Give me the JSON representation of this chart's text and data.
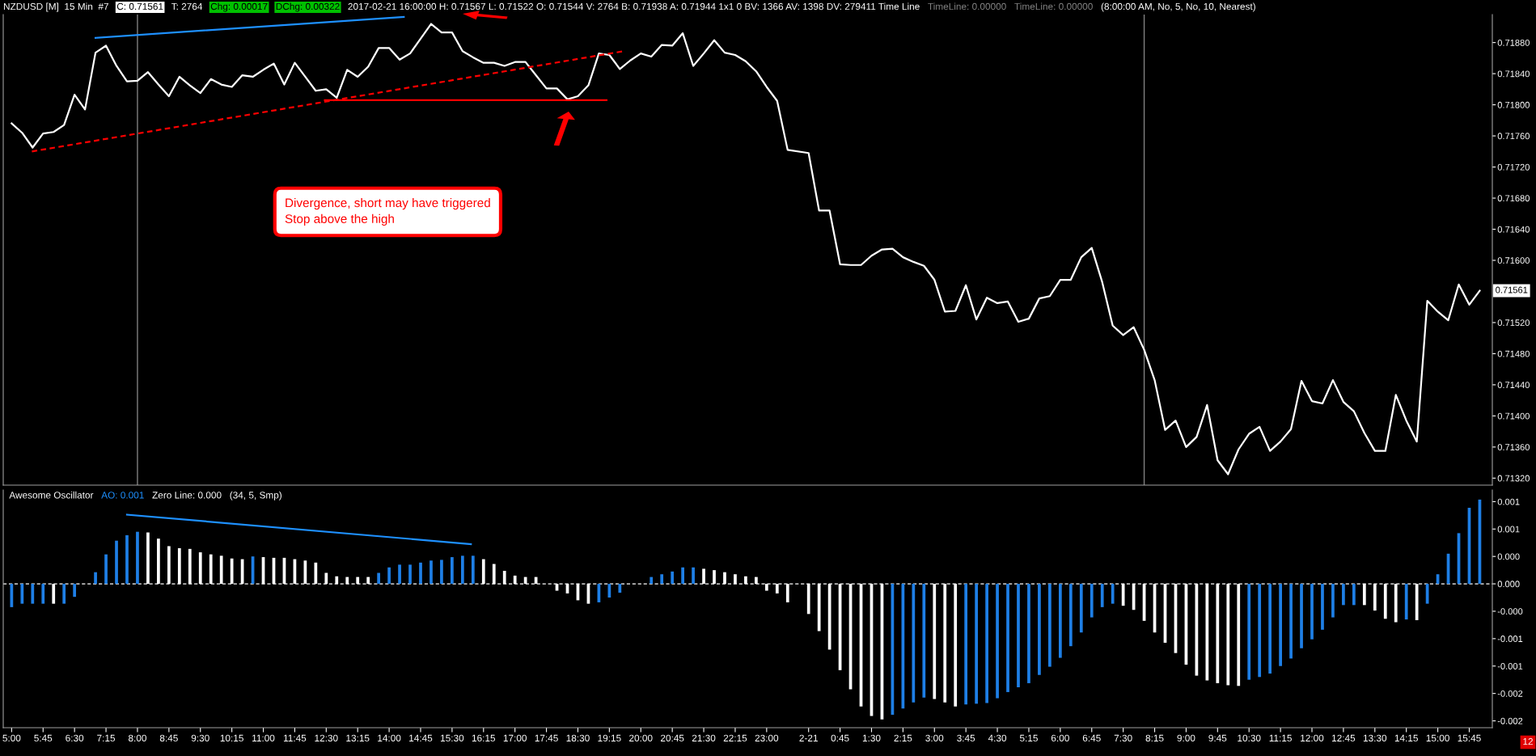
{
  "chart_data": [
    {
      "type": "line",
      "annotations": [
        "NZDUSD [M]  15 Min  #7",
        "C: 0.71561",
        "T: 2764",
        "Chg: 0.00017",
        "DChg: 0.00322",
        "2017-02-21 16:00:00 H: 0.71567 L: 0.71522 O: 0.71544 V: 2764 B: 0.71938 A: 0.71944 1x1 0 BV: 1366 AV: 1398 DV: 279411 Time Line",
        "TimeLine: 0.00000",
        "TimeLine: 0.00000",
        "(8:00:00 AM, No, 5, No, 10, Nearest)",
        "Divergence, short may have triggered\nStop above the high",
        {
          "text": "0.71561",
          "x": "2017-02-21T16:00",
          "y": 0.71561
        }
      ],
      "x": [
        "2017-02-20T05:00",
        "2017-02-20T05:15",
        "2017-02-20T05:30",
        "2017-02-20T05:45",
        "2017-02-20T06:00",
        "2017-02-20T06:15",
        "2017-02-20T06:30",
        "2017-02-20T06:45",
        "2017-02-20T07:00",
        "2017-02-20T07:15",
        "2017-02-20T07:30",
        "2017-02-20T07:45",
        "2017-02-20T08:00",
        "2017-02-20T08:15",
        "2017-02-20T08:30",
        "2017-02-20T08:45",
        "2017-02-20T09:00",
        "2017-02-20T09:15",
        "2017-02-20T09:30",
        "2017-02-20T09:45",
        "2017-02-20T10:00",
        "2017-02-20T10:15",
        "2017-02-20T10:30",
        "2017-02-20T10:45",
        "2017-02-20T11:00",
        "2017-02-20T11:15",
        "2017-02-20T11:30",
        "2017-02-20T11:45",
        "2017-02-20T12:00",
        "2017-02-20T12:15",
        "2017-02-20T12:30",
        "2017-02-20T12:45",
        "2017-02-20T13:00",
        "2017-02-20T13:15",
        "2017-02-20T13:30",
        "2017-02-20T13:45",
        "2017-02-20T14:00",
        "2017-02-20T14:15",
        "2017-02-20T14:30",
        "2017-02-20T14:45",
        "2017-02-20T15:00",
        "2017-02-20T15:15",
        "2017-02-20T15:30",
        "2017-02-20T15:45",
        "2017-02-20T16:00",
        "2017-02-20T16:15",
        "2017-02-20T16:30",
        "2017-02-20T16:45",
        "2017-02-20T17:00",
        "2017-02-20T17:15",
        "2017-02-20T17:30",
        "2017-02-20T17:45",
        "2017-02-20T18:00",
        "2017-02-20T18:15",
        "2017-02-20T18:30",
        "2017-02-20T18:45",
        "2017-02-20T19:00",
        "2017-02-20T19:15",
        "2017-02-20T19:30",
        "2017-02-20T19:45",
        "2017-02-20T20:00",
        "2017-02-20T20:15",
        "2017-02-20T20:30",
        "2017-02-20T20:45",
        "2017-02-20T21:00",
        "2017-02-20T21:15",
        "2017-02-20T21:30",
        "2017-02-20T21:45",
        "2017-02-20T22:00",
        "2017-02-20T22:15",
        "2017-02-20T22:30",
        "2017-02-20T22:45",
        "2017-02-20T23:00",
        "2017-02-20T23:15",
        "2017-02-20T23:30",
        "2017-02-21T00:00",
        "2017-02-21T00:15",
        "2017-02-21T00:30",
        "2017-02-21T00:45",
        "2017-02-21T01:00",
        "2017-02-21T01:15",
        "2017-02-21T01:30",
        "2017-02-21T01:45",
        "2017-02-21T02:00",
        "2017-02-21T02:15",
        "2017-02-21T02:30",
        "2017-02-21T02:45",
        "2017-02-21T03:00",
        "2017-02-21T03:15",
        "2017-02-21T03:30",
        "2017-02-21T03:45",
        "2017-02-21T04:00",
        "2017-02-21T04:15",
        "2017-02-21T04:30",
        "2017-02-21T04:45",
        "2017-02-21T05:00",
        "2017-02-21T05:15",
        "2017-02-21T05:30",
        "2017-02-21T05:45",
        "2017-02-21T06:00",
        "2017-02-21T06:15",
        "2017-02-21T06:30",
        "2017-02-21T06:45",
        "2017-02-21T07:00",
        "2017-02-21T07:15",
        "2017-02-21T07:30",
        "2017-02-21T07:45",
        "2017-02-21T08:00",
        "2017-02-21T08:15",
        "2017-02-21T08:30",
        "2017-02-21T08:45",
        "2017-02-21T09:00",
        "2017-02-21T09:15",
        "2017-02-21T09:30",
        "2017-02-21T09:45",
        "2017-02-21T10:00",
        "2017-02-21T10:15",
        "2017-02-21T10:30",
        "2017-02-21T10:45",
        "2017-02-21T11:00",
        "2017-02-21T11:15",
        "2017-02-21T11:30",
        "2017-02-21T11:45",
        "2017-02-21T12:00",
        "2017-02-21T12:15",
        "2017-02-21T12:30",
        "2017-02-21T12:45",
        "2017-02-21T13:00",
        "2017-02-21T13:15",
        "2017-02-21T13:30",
        "2017-02-21T13:45",
        "2017-02-21T14:00",
        "2017-02-21T14:15",
        "2017-02-21T14:30",
        "2017-02-21T14:45",
        "2017-02-21T15:00",
        "2017-02-21T15:15",
        "2017-02-21T15:30",
        "2017-02-21T15:45",
        "2017-02-21T16:00"
      ],
      "series": [
        {
          "color": "#ffffff",
          "values": [
            0.71776,
            0.71764,
            0.71745,
            0.71763,
            0.71765,
            0.71774,
            0.71813,
            0.71794,
            0.71867,
            0.71876,
            0.7185,
            0.7183,
            0.71831,
            0.71842,
            0.71826,
            0.71811,
            0.71836,
            0.71825,
            0.71815,
            0.71833,
            0.71826,
            0.71823,
            0.71838,
            0.71836,
            0.71845,
            0.71853,
            0.71826,
            0.71854,
            0.71836,
            0.71818,
            0.7182,
            0.71809,
            0.71845,
            0.71836,
            0.71849,
            0.71873,
            0.71873,
            0.71858,
            0.71866,
            0.71885,
            0.71904,
            0.71893,
            0.71893,
            0.71869,
            0.71861,
            0.71854,
            0.71854,
            0.7185,
            0.71855,
            0.71855,
            0.71838,
            0.71821,
            0.71821,
            0.71807,
            0.71811,
            0.71825,
            0.71866,
            0.71864,
            0.71846,
            0.71857,
            0.71866,
            0.71862,
            0.71877,
            0.71876,
            0.71892,
            0.7185,
            0.71866,
            0.71883,
            0.71867,
            0.71864,
            0.71856,
            0.71843,
            0.71823,
            0.71805,
            0.71742,
            0.71738,
            0.71664,
            0.71664,
            0.71595,
            0.71594,
            0.71594,
            0.71606,
            0.71614,
            0.71615,
            0.71604,
            0.71598,
            0.71593,
            0.71575,
            0.71534,
            0.71535,
            0.71568,
            0.71524,
            0.71552,
            0.71545,
            0.71547,
            0.71521,
            0.71525,
            0.71551,
            0.71554,
            0.71575,
            0.71575,
            0.71604,
            0.71616,
            0.71572,
            0.71516,
            0.71504,
            0.71514,
            0.71485,
            0.71446,
            0.71382,
            0.71394,
            0.7136,
            0.71373,
            0.71414,
            0.71343,
            0.71325,
            0.71357,
            0.71377,
            0.71386,
            0.71355,
            0.71367,
            0.71383,
            0.71445,
            0.71419,
            0.71416,
            0.71446,
            0.71418,
            0.71406,
            0.71378,
            0.71355,
            0.71355,
            0.71427,
            0.71394,
            0.71367,
            0.71548,
            0.71534,
            0.71523,
            0.71569,
            0.71543,
            0.71561
          ]
        },
        {
          "color": "#1e90ff",
          "x": [
            "2017-02-20T07:00",
            "2017-02-20T14:21"
          ],
          "values": [
            0.71886,
            0.71913
          ]
        },
        {
          "color": "#ff0000",
          "line_style": "dashed",
          "x": [
            "2017-02-20T05:29",
            "2017-02-20T19:36"
          ],
          "values": [
            0.7174,
            0.71869
          ]
        },
        {
          "color": "#ff0000",
          "x": [
            "2017-02-20T12:28",
            "2017-02-20T19:11"
          ],
          "values": [
            0.71806,
            0.71806
          ]
        }
      ],
      "ref_lines": [
        {
          "axis": "x",
          "value": "2017-02-20T08:00",
          "color": "#808080"
        },
        {
          "axis": "x",
          "value": "2017-02-21T08:00",
          "color": "#808080"
        }
      ],
      "xlim": [
        "2017-02-20T04:48",
        "2017-02-21T16:18"
      ],
      "ylim": [
        0.71311,
        0.71916
      ],
      "yticks": [
        {
          "value": 0.7132,
          "label": "0.71320"
        },
        {
          "value": 0.7136,
          "label": "0.71360"
        },
        {
          "value": 0.714,
          "label": "0.71400"
        },
        {
          "value": 0.7144,
          "label": "0.71440"
        },
        {
          "value": 0.7148,
          "label": "0.71480"
        },
        {
          "value": 0.7152,
          "label": "0.71520"
        },
        {
          "value": 0.716,
          "label": "0.71600"
        },
        {
          "value": 0.7164,
          "label": "0.71640"
        },
        {
          "value": 0.7168,
          "label": "0.71680"
        },
        {
          "value": 0.7172,
          "label": "0.71720"
        },
        {
          "value": 0.7176,
          "label": "0.71760"
        },
        {
          "value": 0.718,
          "label": "0.71800"
        },
        {
          "value": 0.7184,
          "label": "0.71840"
        },
        {
          "value": 0.7188,
          "label": "0.71880"
        }
      ],
      "tick_labels": "y",
      "grid": false,
      "legend": false
    },
    {
      "type": "bar",
      "annotations": [
        "Awesome Oscillator",
        "AO: 0.001",
        "Zero Line: 0.000",
        "(34, 5, Smp)",
        "12"
      ],
      "x": [
        "2017-02-20T05:00",
        "2017-02-20T05:15",
        "2017-02-20T05:30",
        "2017-02-20T05:45",
        "2017-02-20T06:00",
        "2017-02-20T06:15",
        "2017-02-20T06:30",
        "2017-02-20T06:45",
        "2017-02-20T07:00",
        "2017-02-20T07:15",
        "2017-02-20T07:30",
        "2017-02-20T07:45",
        "2017-02-20T08:00",
        "2017-02-20T08:15",
        "2017-02-20T08:30",
        "2017-02-20T08:45",
        "2017-02-20T09:00",
        "2017-02-20T09:15",
        "2017-02-20T09:30",
        "2017-02-20T09:45",
        "2017-02-20T10:00",
        "2017-02-20T10:15",
        "2017-02-20T10:30",
        "2017-02-20T10:45",
        "2017-02-20T11:00",
        "2017-02-20T11:15",
        "2017-02-20T11:30",
        "2017-02-20T11:45",
        "2017-02-20T12:00",
        "2017-02-20T12:15",
        "2017-02-20T12:30",
        "2017-02-20T12:45",
        "2017-02-20T13:00",
        "2017-02-20T13:15",
        "2017-02-20T13:30",
        "2017-02-20T13:45",
        "2017-02-20T14:00",
        "2017-02-20T14:15",
        "2017-02-20T14:30",
        "2017-02-20T14:45",
        "2017-02-20T15:00",
        "2017-02-20T15:15",
        "2017-02-20T15:30",
        "2017-02-20T15:45",
        "2017-02-20T16:00",
        "2017-02-20T16:15",
        "2017-02-20T16:30",
        "2017-02-20T16:45",
        "2017-02-20T17:00",
        "2017-02-20T17:15",
        "2017-02-20T17:30",
        "2017-02-20T17:45",
        "2017-02-20T18:00",
        "2017-02-20T18:15",
        "2017-02-20T18:30",
        "2017-02-20T18:45",
        "2017-02-20T19:00",
        "2017-02-20T19:15",
        "2017-02-20T19:30",
        "2017-02-20T19:45",
        "2017-02-20T20:00",
        "2017-02-20T20:15",
        "2017-02-20T20:30",
        "2017-02-20T20:45",
        "2017-02-20T21:00",
        "2017-02-20T21:15",
        "2017-02-20T21:30",
        "2017-02-20T21:45",
        "2017-02-20T22:00",
        "2017-02-20T22:15",
        "2017-02-20T22:30",
        "2017-02-20T22:45",
        "2017-02-20T23:00",
        "2017-02-20T23:15",
        "2017-02-20T23:30",
        "2017-02-21T00:00",
        "2017-02-21T00:15",
        "2017-02-21T00:30",
        "2017-02-21T00:45",
        "2017-02-21T01:00",
        "2017-02-21T01:15",
        "2017-02-21T01:30",
        "2017-02-21T01:45",
        "2017-02-21T02:00",
        "2017-02-21T02:15",
        "2017-02-21T02:30",
        "2017-02-21T02:45",
        "2017-02-21T03:00",
        "2017-02-21T03:15",
        "2017-02-21T03:30",
        "2017-02-21T03:45",
        "2017-02-21T04:00",
        "2017-02-21T04:15",
        "2017-02-21T04:30",
        "2017-02-21T04:45",
        "2017-02-21T05:00",
        "2017-02-21T05:15",
        "2017-02-21T05:30",
        "2017-02-21T05:45",
        "2017-02-21T06:00",
        "2017-02-21T06:15",
        "2017-02-21T06:30",
        "2017-02-21T06:45",
        "2017-02-21T07:00",
        "2017-02-21T07:15",
        "2017-02-21T07:30",
        "2017-02-21T07:45",
        "2017-02-21T08:00",
        "2017-02-21T08:15",
        "2017-02-21T08:30",
        "2017-02-21T08:45",
        "2017-02-21T09:00",
        "2017-02-21T09:15",
        "2017-02-21T09:30",
        "2017-02-21T09:45",
        "2017-02-21T10:00",
        "2017-02-21T10:15",
        "2017-02-21T10:30",
        "2017-02-21T10:45",
        "2017-02-21T11:00",
        "2017-02-21T11:15",
        "2017-02-21T11:30",
        "2017-02-21T11:45",
        "2017-02-21T12:00",
        "2017-02-21T12:15",
        "2017-02-21T12:30",
        "2017-02-21T12:45",
        "2017-02-21T13:00",
        "2017-02-21T13:15",
        "2017-02-21T13:30",
        "2017-02-21T13:45",
        "2017-02-21T14:00",
        "2017-02-21T14:15",
        "2017-02-21T14:30",
        "2017-02-21T14:45",
        "2017-02-21T15:00",
        "2017-02-21T15:15",
        "2017-02-21T15:30",
        "2017-02-21T15:45",
        "2017-02-21T16:00"
      ],
      "series": [
        {
          "values": [
            -0.00034,
            -0.00029,
            -0.00029,
            -0.00029,
            -0.00029,
            -0.00029,
            -0.00019,
            -0.0,
            0.00017,
            0.00043,
            0.00063,
            0.00071,
            0.00076,
            0.00075,
            0.00066,
            0.00055,
            0.00052,
            0.00051,
            0.00046,
            0.00043,
            0.00041,
            0.00037,
            0.00036,
            0.0004,
            0.00039,
            0.00038,
            0.00038,
            0.00036,
            0.00034,
            0.00031,
            0.00016,
            0.00011,
            0.0001,
            0.0001,
            0.0001,
            0.00016,
            0.00024,
            0.00028,
            0.00028,
            0.00031,
            0.00034,
            0.00035,
            0.00039,
            0.00041,
            0.00041,
            0.00036,
            0.00029,
            0.00019,
            0.00012,
            0.0001,
            0.0001,
            -0.0,
            -0.0001,
            -0.00014,
            -0.00024,
            -0.00029,
            -0.00027,
            -0.0002,
            -0.00013,
            -0.0,
            0.0,
            0.0001,
            0.00014,
            0.00018,
            0.00024,
            0.00024,
            0.00022,
            0.0002,
            0.00017,
            0.00014,
            0.00011,
            0.0001,
            -0.0001,
            -0.00014,
            -0.00027,
            -0.00044,
            -0.00069,
            -0.00096,
            -0.00126,
            -0.00154,
            -0.00179,
            -0.00193,
            -0.00198,
            -0.00191,
            -0.00182,
            -0.00173,
            -0.00166,
            -0.00168,
            -0.00173,
            -0.00179,
            -0.00176,
            -0.00175,
            -0.00174,
            -0.00167,
            -0.00158,
            -0.00151,
            -0.00145,
            -0.00133,
            -0.00121,
            -0.00108,
            -0.00091,
            -0.00071,
            -0.00049,
            -0.00034,
            -0.00029,
            -0.00032,
            -0.00038,
            -0.00054,
            -0.00071,
            -0.00086,
            -0.00101,
            -0.00118,
            -0.00134,
            -0.00141,
            -0.00145,
            -0.00148,
            -0.00149,
            -0.0014,
            -0.00136,
            -0.00131,
            -0.0012,
            -0.00109,
            -0.00094,
            -0.00081,
            -0.00067,
            -0.00049,
            -0.00031,
            -0.00031,
            -0.00031,
            -0.00039,
            -0.00051,
            -0.00056,
            -0.00052,
            -0.00053,
            -0.00029,
            0.00014,
            0.00044,
            0.00074,
            0.00111,
            0.00123
          ],
          "colors": [
            "#1e7fe6",
            "#1e7fe6",
            "#1e7fe6",
            "#1e7fe6",
            "#ffffff",
            "#1e7fe6",
            "#1e7fe6",
            "#1e7fe6",
            "#1e7fe6",
            "#1e7fe6",
            "#1e7fe6",
            "#1e7fe6",
            "#1e7fe6",
            "#ffffff",
            "#ffffff",
            "#ffffff",
            "#ffffff",
            "#ffffff",
            "#ffffff",
            "#ffffff",
            "#ffffff",
            "#ffffff",
            "#ffffff",
            "#1e7fe6",
            "#ffffff",
            "#ffffff",
            "#ffffff",
            "#ffffff",
            "#ffffff",
            "#ffffff",
            "#ffffff",
            "#ffffff",
            "#ffffff",
            "#ffffff",
            "#ffffff",
            "#1e7fe6",
            "#1e7fe6",
            "#1e7fe6",
            "#1e7fe6",
            "#1e7fe6",
            "#1e7fe6",
            "#1e7fe6",
            "#1e7fe6",
            "#1e7fe6",
            "#1e7fe6",
            "#ffffff",
            "#ffffff",
            "#ffffff",
            "#ffffff",
            "#ffffff",
            "#ffffff",
            "#ffffff",
            "#ffffff",
            "#ffffff",
            "#ffffff",
            "#ffffff",
            "#1e7fe6",
            "#1e7fe6",
            "#1e7fe6",
            "#1e7fe6",
            "#1e7fe6",
            "#1e7fe6",
            "#1e7fe6",
            "#1e7fe6",
            "#1e7fe6",
            "#1e7fe6",
            "#ffffff",
            "#ffffff",
            "#ffffff",
            "#ffffff",
            "#ffffff",
            "#ffffff",
            "#ffffff",
            "#ffffff",
            "#ffffff",
            "#ffffff",
            "#ffffff",
            "#ffffff",
            "#ffffff",
            "#ffffff",
            "#ffffff",
            "#ffffff",
            "#ffffff",
            "#1e7fe6",
            "#1e7fe6",
            "#1e7fe6",
            "#1e7fe6",
            "#ffffff",
            "#ffffff",
            "#ffffff",
            "#1e7fe6",
            "#1e7fe6",
            "#1e7fe6",
            "#1e7fe6",
            "#1e7fe6",
            "#1e7fe6",
            "#1e7fe6",
            "#1e7fe6",
            "#1e7fe6",
            "#1e7fe6",
            "#1e7fe6",
            "#1e7fe6",
            "#1e7fe6",
            "#1e7fe6",
            "#1e7fe6",
            "#ffffff",
            "#ffffff",
            "#ffffff",
            "#ffffff",
            "#ffffff",
            "#ffffff",
            "#ffffff",
            "#ffffff",
            "#ffffff",
            "#ffffff",
            "#ffffff",
            "#ffffff",
            "#1e7fe6",
            "#1e7fe6",
            "#1e7fe6",
            "#1e7fe6",
            "#1e7fe6",
            "#1e7fe6",
            "#1e7fe6",
            "#1e7fe6",
            "#1e7fe6",
            "#1e7fe6",
            "#1e7fe6",
            "#ffffff",
            "#ffffff",
            "#ffffff",
            "#ffffff",
            "#1e7fe6",
            "#ffffff",
            "#1e7fe6",
            "#1e7fe6",
            "#1e7fe6",
            "#1e7fe6",
            "#1e7fe6",
            "#1e7fe6"
          ]
        },
        {
          "type": "line",
          "color": "#1e90ff",
          "x": [
            "2017-02-20T07:45",
            "2017-02-20T15:57"
          ],
          "values": [
            0.00101,
            0.00058
          ]
        }
      ],
      "ref_lines": [
        {
          "axis": "y",
          "value": 0,
          "color": "#ffffff",
          "line_style": "dashed"
        }
      ],
      "xlim": [
        "2017-02-20T04:48",
        "2017-02-21T16:18"
      ],
      "xticks": [
        {
          "value": "2017-02-20T05:00",
          "label": "5:00"
        },
        {
          "value": "2017-02-20T05:45",
          "label": "5:45"
        },
        {
          "value": "2017-02-20T06:30",
          "label": "6:30"
        },
        {
          "value": "2017-02-20T07:15",
          "label": "7:15"
        },
        {
          "value": "2017-02-20T08:00",
          "label": "8:00"
        },
        {
          "value": "2017-02-20T08:45",
          "label": "8:45"
        },
        {
          "value": "2017-02-20T09:30",
          "label": "9:30"
        },
        {
          "value": "2017-02-20T10:15",
          "label": "10:15"
        },
        {
          "value": "2017-02-20T11:00",
          "label": "11:00"
        },
        {
          "value": "2017-02-20T11:45",
          "label": "11:45"
        },
        {
          "value": "2017-02-20T12:30",
          "label": "12:30"
        },
        {
          "value": "2017-02-20T13:15",
          "label": "13:15"
        },
        {
          "value": "2017-02-20T14:00",
          "label": "14:00"
        },
        {
          "value": "2017-02-20T14:45",
          "label": "14:45"
        },
        {
          "value": "2017-02-20T15:30",
          "label": "15:30"
        },
        {
          "value": "2017-02-20T16:15",
          "label": "16:15"
        },
        {
          "value": "2017-02-20T17:00",
          "label": "17:00"
        },
        {
          "value": "2017-02-20T17:45",
          "label": "17:45"
        },
        {
          "value": "2017-02-20T18:30",
          "label": "18:30"
        },
        {
          "value": "2017-02-20T19:15",
          "label": "19:15"
        },
        {
          "value": "2017-02-20T20:00",
          "label": "20:00"
        },
        {
          "value": "2017-02-20T20:45",
          "label": "20:45"
        },
        {
          "value": "2017-02-20T21:30",
          "label": "21:30"
        },
        {
          "value": "2017-02-20T22:15",
          "label": "22:15"
        },
        {
          "value": "2017-02-20T23:00",
          "label": "23:00"
        },
        {
          "value": "2017-02-21T00:00",
          "label": "2-21"
        },
        {
          "value": "2017-02-21T00:45",
          "label": "0:45"
        },
        {
          "value": "2017-02-21T01:30",
          "label": "1:30"
        },
        {
          "value": "2017-02-21T02:15",
          "label": "2:15"
        },
        {
          "value": "2017-02-21T03:00",
          "label": "3:00"
        },
        {
          "value": "2017-02-21T03:45",
          "label": "3:45"
        },
        {
          "value": "2017-02-21T04:30",
          "label": "4:30"
        },
        {
          "value": "2017-02-21T05:15",
          "label": "5:15"
        },
        {
          "value": "2017-02-21T06:00",
          "label": "6:00"
        },
        {
          "value": "2017-02-21T06:45",
          "label": "6:45"
        },
        {
          "value": "2017-02-21T07:30",
          "label": "7:30"
        },
        {
          "value": "2017-02-21T08:15",
          "label": "8:15"
        },
        {
          "value": "2017-02-21T09:00",
          "label": "9:00"
        },
        {
          "value": "2017-02-21T09:45",
          "label": "9:45"
        },
        {
          "value": "2017-02-21T10:30",
          "label": "10:30"
        },
        {
          "value": "2017-02-21T11:15",
          "label": "11:15"
        },
        {
          "value": "2017-02-21T12:00",
          "label": "12:00"
        },
        {
          "value": "2017-02-21T12:45",
          "label": "12:45"
        },
        {
          "value": "2017-02-21T13:30",
          "label": "13:30"
        },
        {
          "value": "2017-02-21T14:15",
          "label": "14:15"
        },
        {
          "value": "2017-02-21T15:00",
          "label": "15:00"
        },
        {
          "value": "2017-02-21T15:45",
          "label": "15:45"
        }
      ],
      "ylim": [
        -0.0021,
        0.00137
      ],
      "yticks": [
        {
          "value": 0.0012,
          "label": "0.001"
        },
        {
          "value": 0.0008,
          "label": "0.001"
        },
        {
          "value": 0.0004,
          "label": "0.000"
        },
        {
          "value": 0,
          "label": "0.000"
        },
        {
          "value": -0.0004,
          "label": "-0.000"
        },
        {
          "value": -0.0008,
          "label": "-0.001"
        },
        {
          "value": -0.0012,
          "label": "-0.001"
        },
        {
          "value": -0.0016,
          "label": "-0.002"
        },
        {
          "value": -0.002,
          "label": "-0.002"
        }
      ],
      "grid": false,
      "legend": false
    }
  ]
}
